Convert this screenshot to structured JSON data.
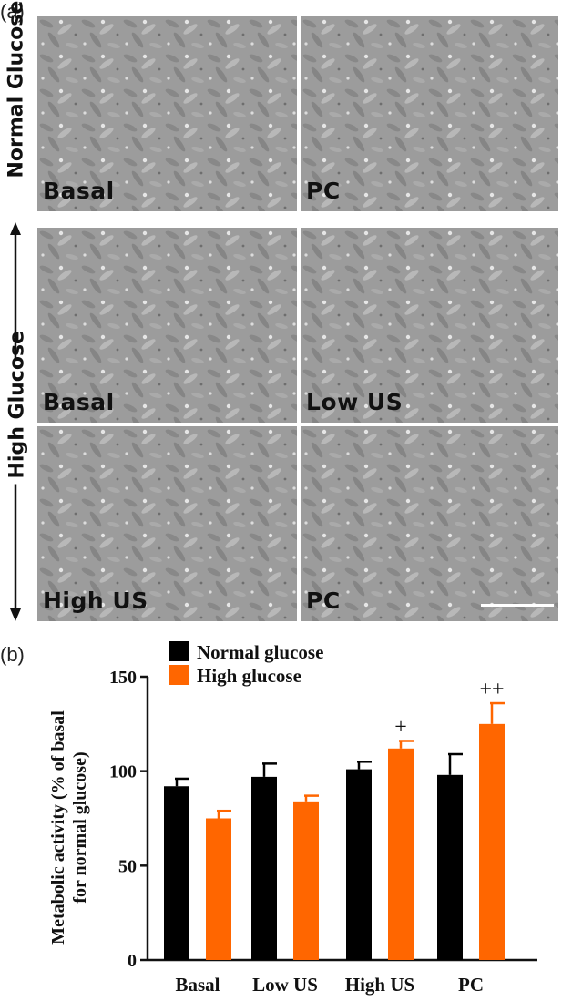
{
  "figure": {
    "panel_a": {
      "letter": "(a)",
      "row_labels": {
        "normal": "Normal Glucose",
        "high": "High Glucose"
      },
      "images": [
        {
          "label": "Basal"
        },
        {
          "label": "PC"
        },
        {
          "label": "Basal"
        },
        {
          "label": "Low US"
        },
        {
          "label": "High US"
        },
        {
          "label": "PC"
        }
      ]
    },
    "panel_b": {
      "letter": "(b)"
    }
  },
  "chart_data": {
    "type": "bar",
    "categories": [
      "Basal",
      "Low US",
      "High US",
      "PC"
    ],
    "series": [
      {
        "name": "Normal glucose",
        "color": "#000000",
        "values": [
          92,
          97,
          101,
          98
        ],
        "errors": [
          4,
          7,
          4,
          11
        ]
      },
      {
        "name": "High glucose",
        "color": "#ff6600",
        "values": [
          75,
          84,
          112,
          125
        ],
        "errors": [
          4,
          3,
          4,
          11
        ]
      }
    ],
    "annotations": [
      {
        "category": "High US",
        "series": "High glucose",
        "text": "+"
      },
      {
        "category": "PC",
        "series": "High glucose",
        "text": "++"
      }
    ],
    "ylabel_lines": [
      "Metabolic activity (% of basal",
      "for normal glucose)"
    ],
    "xlabel": "",
    "ylim": [
      0,
      150
    ],
    "yticks": [
      0,
      50,
      100,
      150
    ],
    "legend_position": "top"
  }
}
